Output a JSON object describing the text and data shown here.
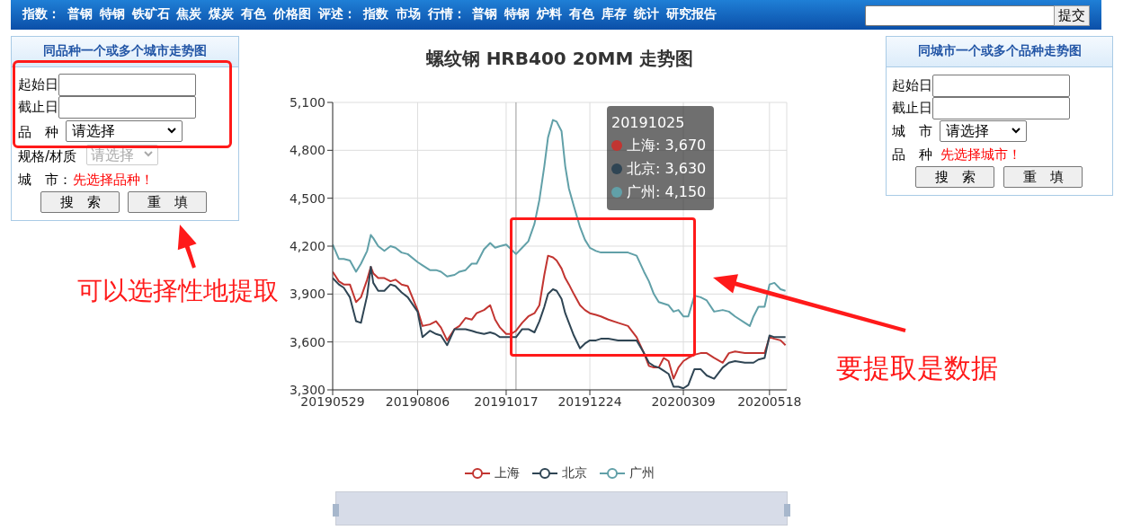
{
  "chart_data": {
    "type": "line",
    "title": "螺纹钢 HRB400 20MM 走势图",
    "x": [
      "2019-05-29",
      "2019-06-03",
      "2019-06-07",
      "2019-06-12",
      "2019-06-17",
      "2019-06-21",
      "2019-06-26",
      "2019-06-29",
      "2019-07-01",
      "2019-07-05",
      "2019-07-10",
      "2019-07-15",
      "2019-07-19",
      "2019-07-24",
      "2019-07-29",
      "2019-08-06",
      "2019-08-10",
      "2019-08-16",
      "2019-08-21",
      "2019-08-25",
      "2019-08-30",
      "2019-09-05",
      "2019-09-09",
      "2019-09-14",
      "2019-09-19",
      "2019-09-23",
      "2019-09-29",
      "2019-10-04",
      "2019-10-08",
      "2019-10-12",
      "2019-10-17",
      "2019-10-21",
      "2019-10-25",
      "2019-10-30",
      "2019-11-04",
      "2019-11-09",
      "2019-11-13",
      "2019-11-17",
      "2019-11-20",
      "2019-11-24",
      "2019-11-27",
      "2019-12-01",
      "2019-12-04",
      "2019-12-07",
      "2019-12-11",
      "2019-12-16",
      "2019-12-20",
      "2019-12-24",
      "2019-12-29",
      "2020-01-02",
      "2020-01-08",
      "2020-01-16",
      "2020-01-24",
      "2020-01-31",
      "2020-02-06",
      "2020-02-10",
      "2020-02-14",
      "2020-02-18",
      "2020-02-22",
      "2020-02-26",
      "2020-03-01",
      "2020-03-05",
      "2020-03-09",
      "2020-03-13",
      "2020-03-18",
      "2020-03-23",
      "2020-03-28",
      "2020-04-03",
      "2020-04-10",
      "2020-04-15",
      "2020-04-20",
      "2020-04-28",
      "2020-05-02",
      "2020-05-05",
      "2020-05-09",
      "2020-05-14",
      "2020-05-18",
      "2020-05-22",
      "2020-05-27",
      "2020-05-31"
    ],
    "series": [
      {
        "name": "上海",
        "color": "#c23531",
        "values": [
          4040,
          3980,
          3960,
          3960,
          3850,
          3880,
          3990,
          4070,
          4030,
          4000,
          4000,
          3980,
          3990,
          3960,
          3950,
          3800,
          3700,
          3710,
          3730,
          3690,
          3610,
          3680,
          3700,
          3750,
          3740,
          3780,
          3800,
          3830,
          3740,
          3690,
          3650,
          3650,
          3670,
          3720,
          3760,
          3780,
          3830,
          4020,
          4140,
          4130,
          4110,
          4060,
          4000,
          3960,
          3900,
          3830,
          3800,
          3780,
          3770,
          3760,
          3740,
          3720,
          3700,
          3630,
          3530,
          3450,
          3440,
          3440,
          3500,
          3480,
          3370,
          3440,
          3480,
          3500,
          3520,
          3530,
          3530,
          3500,
          3470,
          3530,
          3540,
          3530,
          3530,
          3530,
          3530,
          3530,
          3630,
          3620,
          3610,
          3580
        ]
      },
      {
        "name": "北京",
        "color": "#2f4554",
        "values": [
          4000,
          3960,
          3940,
          3880,
          3730,
          3720,
          3890,
          4070,
          3970,
          3920,
          3920,
          3960,
          3950,
          3910,
          3880,
          3790,
          3630,
          3670,
          3650,
          3640,
          3580,
          3680,
          3680,
          3680,
          3670,
          3660,
          3650,
          3660,
          3650,
          3630,
          3630,
          3630,
          3630,
          3680,
          3680,
          3660,
          3730,
          3820,
          3900,
          3930,
          3920,
          3870,
          3780,
          3720,
          3640,
          3560,
          3590,
          3610,
          3610,
          3620,
          3620,
          3610,
          3610,
          3610,
          3530,
          3470,
          3450,
          3440,
          3420,
          3400,
          3320,
          3320,
          3310,
          3330,
          3430,
          3430,
          3390,
          3370,
          3440,
          3470,
          3480,
          3470,
          3470,
          3470,
          3490,
          3500,
          3640,
          3630,
          3630,
          3630
        ]
      },
      {
        "name": "广州",
        "color": "#61a0a8",
        "values": [
          4210,
          4120,
          4120,
          4110,
          4040,
          4090,
          4170,
          4270,
          4250,
          4200,
          4170,
          4200,
          4190,
          4160,
          4150,
          4100,
          4080,
          4050,
          4050,
          4040,
          4010,
          4020,
          4040,
          4050,
          4090,
          4090,
          4180,
          4220,
          4190,
          4200,
          4210,
          4180,
          4150,
          4190,
          4230,
          4340,
          4490,
          4700,
          4880,
          4990,
          4980,
          4920,
          4700,
          4560,
          4450,
          4320,
          4240,
          4190,
          4170,
          4160,
          4160,
          4160,
          4160,
          4140,
          4040,
          3980,
          3900,
          3850,
          3840,
          3830,
          3790,
          3800,
          3760,
          3760,
          3890,
          3880,
          3860,
          3790,
          3800,
          3790,
          3760,
          3720,
          3700,
          3760,
          3820,
          3820,
          3960,
          3970,
          3930,
          3920
        ]
      }
    ],
    "xlim": [
      "2019-05-29",
      "2020-06-01"
    ],
    "xticks": [
      {
        "value": "2019-05-29",
        "label": "20190529"
      },
      {
        "value": "2019-08-06",
        "label": "20190806"
      },
      {
        "value": "2019-10-17",
        "label": "20191017"
      },
      {
        "value": "2019-12-24",
        "label": "20191224"
      },
      {
        "value": "2020-03-09",
        "label": "20200309"
      },
      {
        "value": "2020-05-18",
        "label": "20200518"
      }
    ],
    "ylim": [
      3300,
      5100
    ],
    "yticks": [
      {
        "value": 3300,
        "label": "3,300"
      },
      {
        "value": 3600,
        "label": "3,600"
      },
      {
        "value": 3900,
        "label": "3,900"
      },
      {
        "value": 4200,
        "label": "4,200"
      },
      {
        "value": 4500,
        "label": "4,500"
      },
      {
        "value": 4800,
        "label": "4,800"
      },
      {
        "value": 5100,
        "label": "5,100"
      }
    ],
    "grid": true,
    "legend": "bottom",
    "line_style": "solid",
    "ref_lines": [
      {
        "axis": "x",
        "value": "2019-10-25",
        "color": "#999999"
      }
    ],
    "annotations": [
      "指数： 普钢 特钢 铁矿石 焦炭 煤炭 有色 价格图 评述： 指数 市场 行情： 普钢 特钢 炉料 有色 库存 统计 研究报告",
      "提交",
      "同品种一个或多个城市走势图",
      "起始日",
      "截止日",
      "品　种",
      "请选择",
      "规格/材质",
      "请选择",
      "城　市：",
      "先选择品种！",
      "搜　索",
      "重　填",
      "同城市一个或多个品种走势图",
      "起始日",
      "截止日",
      "城　市",
      "请选择",
      "品　种",
      "先选择城市！",
      "搜　索",
      "重　填",
      "可以选择性地提取",
      "要提取是数据",
      "20191025",
      "上海: 3,670",
      "北京: 3,630",
      "广州: 4,150"
    ]
  }
}
